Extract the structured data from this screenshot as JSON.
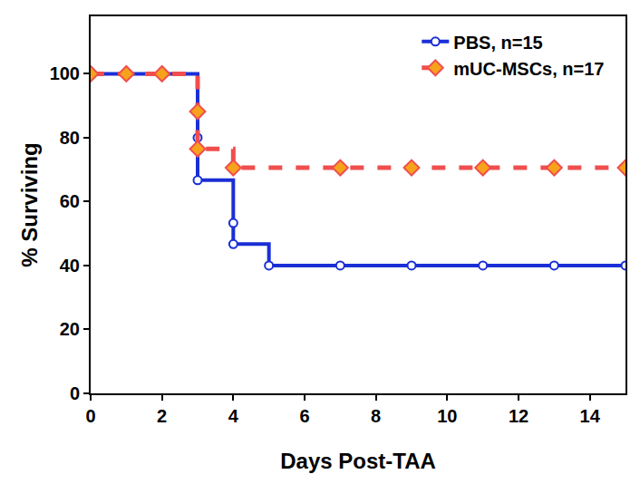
{
  "chart_data": {
    "type": "line",
    "x_label": "Days Post-TAA",
    "y_label": "% Surviving",
    "xlim": [
      0,
      15
    ],
    "xticks": [
      0,
      2,
      4,
      6,
      8,
      10,
      12,
      14
    ],
    "ylim": [
      0,
      118
    ],
    "yticks": [
      0,
      20,
      40,
      60,
      80,
      100
    ],
    "grid": false,
    "legend": "upper right",
    "series": [
      {
        "name": "PBS, n=15",
        "color": "#1a2fd6",
        "marker": "circle-open",
        "line_style": "solid",
        "x": [
          0,
          1,
          2,
          3,
          3,
          4,
          4,
          5,
          7,
          9,
          11,
          13,
          15
        ],
        "values": [
          100,
          100,
          100,
          80,
          66.7,
          53.3,
          46.7,
          40,
          40,
          40,
          40,
          40,
          40
        ]
      },
      {
        "name": "mUC-MSCs, n=17",
        "color": "#f04e4e",
        "marker": "diamond",
        "line_style": "dash",
        "x": [
          0,
          1,
          2,
          3,
          3,
          4,
          7,
          9,
          11,
          13,
          15
        ],
        "values": [
          100,
          100,
          100,
          88.2,
          76.5,
          70.6,
          70.6,
          70.6,
          70.6,
          70.6,
          70.6
        ]
      }
    ]
  }
}
